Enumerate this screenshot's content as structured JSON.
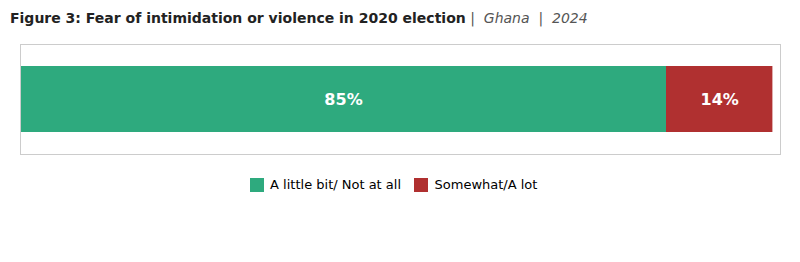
{
  "chart_data": {
    "type": "bar",
    "orientation": "horizontal",
    "stacked": true,
    "title": "Figure 3: Fear of intimidation or violence in 2020 election",
    "subtitle": "|  Ghana  |  2024",
    "categories": [
      null
    ],
    "series": [
      {
        "name": "A little bit/ Not at all",
        "color": "#2eaa7e",
        "values": [
          85
        ],
        "value_labels": [
          "85%"
        ]
      },
      {
        "name": "Somewhat/A lot",
        "color": "#b03030",
        "values": [
          14
        ],
        "value_labels": [
          "14%"
        ]
      }
    ],
    "xlim": [
      0,
      100
    ],
    "data_labels": true,
    "tick_labels": false,
    "grid": false,
    "legend": "bottom"
  }
}
